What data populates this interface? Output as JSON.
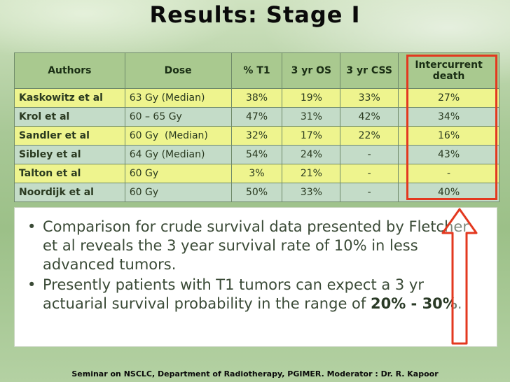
{
  "slide": {
    "title": "Results: Stage I",
    "footer": "Seminar on NSCLC, Department of Radiotherapy, PGIMER. Moderator : Dr. R. Kapoor"
  },
  "table": {
    "headers": [
      "Authors",
      "Dose",
      "% T1",
      "3 yr OS",
      "3 yr CSS",
      "Intercurrent death"
    ],
    "rows": [
      [
        "Kaskowitz et al",
        "63 Gy (Median)",
        "38%",
        "19%",
        "33%",
        "27%"
      ],
      [
        "Krol et al",
        "60 – 65 Gy",
        "47%",
        "31%",
        "42%",
        "34%"
      ],
      [
        "Sandler et al",
        "60 Gy  (Median)",
        "32%",
        "17%",
        "22%",
        "16%"
      ],
      [
        "Sibley et al",
        "64 Gy (Median)",
        "54%",
        "24%",
        "-",
        "43%"
      ],
      [
        "Talton et al",
        "60 Gy",
        "3%",
        "21%",
        "-",
        "-"
      ],
      [
        "Noordijk et al",
        "60 Gy",
        "50%",
        "33%",
        "-",
        "40%"
      ]
    ]
  },
  "bullets": {
    "b1": "Comparison for crude survival data presented by Fletcher et al reveals the 3 year survival rate of 10% in less advanced tumors.",
    "b2_text": "Presently patients with T1 tumors can expect a 3 yr actuarial survival probability in the range of ",
    "b2_bold": "20% - 30%",
    "b2_end": "."
  },
  "colors": {
    "highlight": "#e3381f",
    "row_yellow": "#eef48e",
    "row_blue": "#c4dcc8",
    "header": "#a9c98f"
  }
}
